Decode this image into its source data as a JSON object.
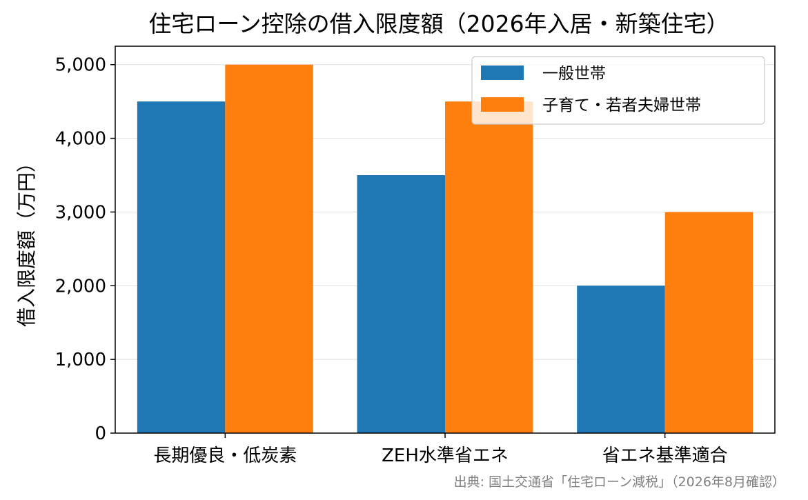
{
  "chart_data": {
    "type": "bar",
    "title": "住宅ローン控除の借入限度額（2026年入居・新築住宅）",
    "xlabel": "",
    "ylabel": "借入限度額（万円）",
    "categories": [
      "長期優良・低炭素",
      "ZEH水準省エネ",
      "省エネ基準適合"
    ],
    "series": [
      {
        "name": "一般世帯",
        "values": [
          4500,
          3500,
          2000
        ],
        "color": "#1f77b4"
      },
      {
        "name": "子育て・若者夫婦世帯",
        "values": [
          5000,
          4500,
          3000
        ],
        "color": "#ff7f0e"
      }
    ],
    "ylim": [
      0,
      5250
    ],
    "yticks": [
      0,
      1000,
      2000,
      3000,
      4000,
      5000
    ],
    "ytick_labels": [
      "0",
      "1,000",
      "2,000",
      "3,000",
      "4,000",
      "5,000"
    ],
    "grid": "horizontal",
    "legend_position": "top-right"
  },
  "source_note": "出典: 国土交通省「住宅ローン減税」（2026年8月確認）"
}
